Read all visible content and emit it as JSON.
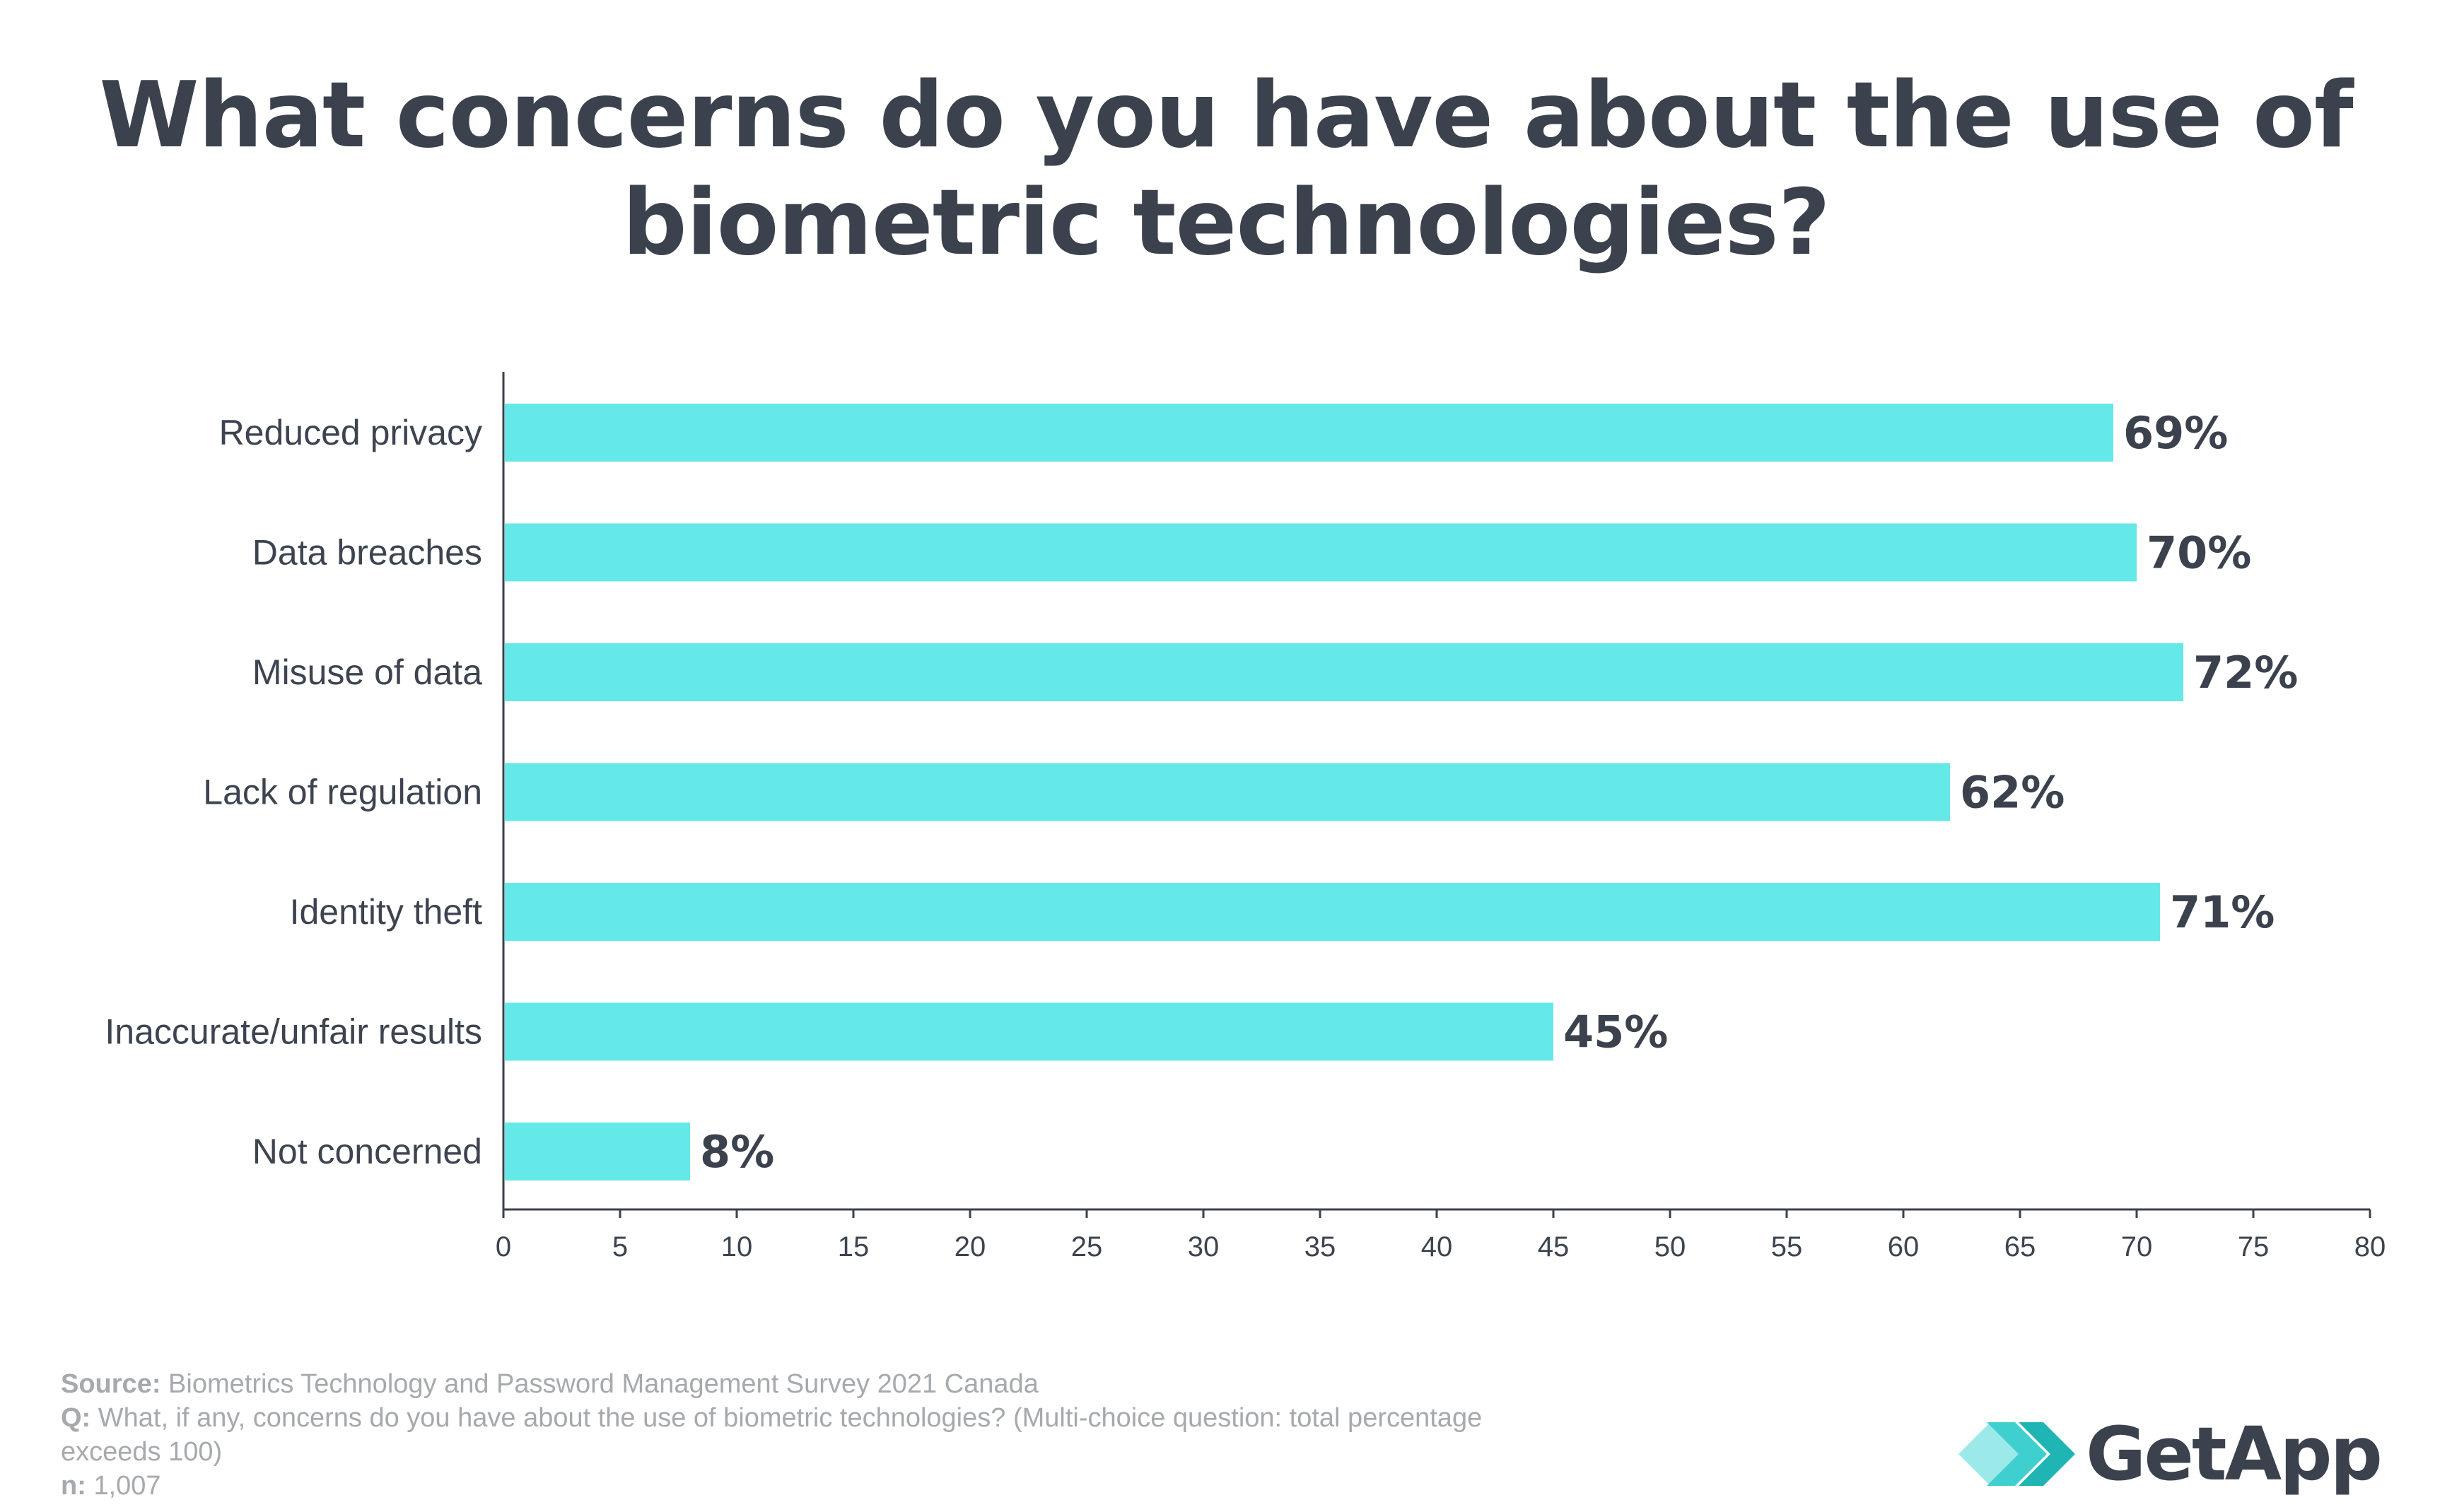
{
  "chart_data": {
    "type": "bar",
    "orientation": "horizontal",
    "title_line1": "What concerns do you have about the use of",
    "title_line2": "biometric technologies?",
    "categories": [
      "Reduced privacy",
      "Data breaches",
      "Misuse of data",
      "Lack of regulation",
      "Identity theft",
      "Inaccurate/unfair results",
      "Not concerned"
    ],
    "values": [
      69,
      70,
      72,
      62,
      71,
      45,
      8
    ],
    "value_labels": [
      "69%",
      "70%",
      "72%",
      "62%",
      "71%",
      "45%",
      "8%"
    ],
    "xlim": [
      0,
      80
    ],
    "xticks": [
      "0",
      "5",
      "10",
      "15",
      "20",
      "25",
      "30",
      "35",
      "40",
      "45",
      "50",
      "55",
      "60",
      "65",
      "70",
      "75",
      "80"
    ],
    "grid": false,
    "bar_color": "#64e8e8"
  },
  "footer": {
    "source_label": "Source:",
    "source_text": "Biometrics Technology and Password Management Survey 2021 Canada",
    "q_label": "Q:",
    "q_text_line1": "What, if any, concerns do you have about the use of biometric technologies? (Multi-choice question: total percentage",
    "q_text_line2": "exceeds 100)",
    "n_label": "n:",
    "n_text": "1,007"
  },
  "logo": {
    "text": "GetApp",
    "icon": "getapp-chevron-icon"
  }
}
